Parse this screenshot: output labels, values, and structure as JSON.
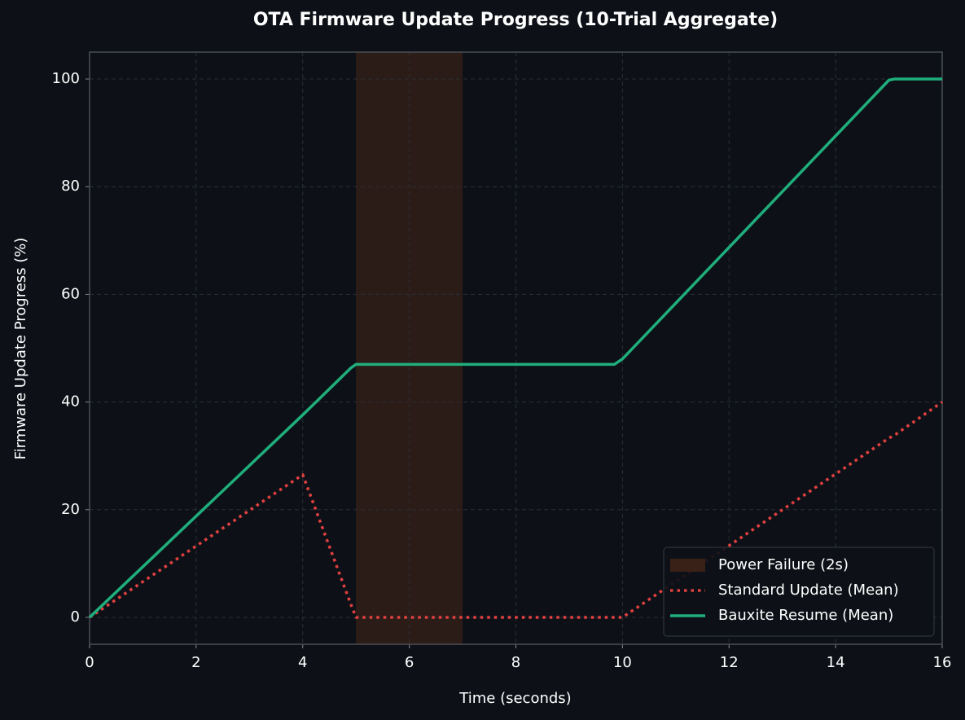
{
  "chart_data": {
    "type": "line",
    "title": "OTA Firmware Update Progress (10-Trial Aggregate)",
    "x_label": "Time (seconds)",
    "y_label": "Firmware Update Progress (%)",
    "x": [
      0,
      4,
      4.9,
      5,
      5.05,
      9.85,
      10,
      15,
      15.1,
      16
    ],
    "series": [
      {
        "name": "Standard Update (Mean)",
        "color": "#e0403f",
        "style": "dotted",
        "values": [
          0,
          26.5,
          2.5,
          0,
          0,
          0,
          0,
          33.3,
          33.8,
          40
        ]
      },
      {
        "name": "Bauxite Resume (Mean)",
        "color": "#1fae7c",
        "style": "solid",
        "values": [
          0,
          37.6,
          46.3,
          47,
          47,
          47,
          48,
          99.8,
          100,
          100
        ]
      }
    ],
    "spans": [
      {
        "name": "Power Failure (2s)",
        "start": 5,
        "end": 7,
        "color": "#3a2118"
      }
    ],
    "xlim": [
      0,
      16
    ],
    "ylim": [
      -5,
      105
    ],
    "xticks": [
      0,
      2,
      4,
      6,
      8,
      10,
      12,
      14,
      16
    ],
    "yticks": [
      0,
      20,
      40,
      60,
      80,
      100
    ],
    "grid": true,
    "legend": "lower-right"
  }
}
